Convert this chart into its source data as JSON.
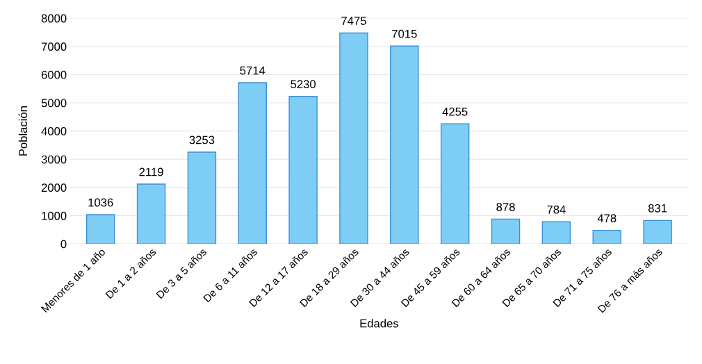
{
  "chart_data": {
    "type": "bar",
    "xlabel": "Edades",
    "ylabel": "Población",
    "categories": [
      "Menores de 1 año",
      "De 1 a 2 años",
      "De 3 a 5 años",
      "De 6 a 11 años",
      "De 12 a 17 años",
      "De 18 a 29 años",
      "De 30 a 44 años",
      "De 45 a 59 años",
      "De 60 a 64 años",
      "De 65 a 70 años",
      "De 71 a 75 años",
      "De 76 a más años"
    ],
    "values": [
      1036,
      2119,
      3253,
      5714,
      5230,
      7475,
      7015,
      4255,
      878,
      784,
      478,
      831
    ],
    "color": "#7dcdf5",
    "ylim": [
      0,
      8000
    ],
    "yticks": [
      0,
      1000,
      2000,
      3000,
      4000,
      5000,
      6000,
      7000,
      8000
    ],
    "grid": "y",
    "data_labels": true
  }
}
